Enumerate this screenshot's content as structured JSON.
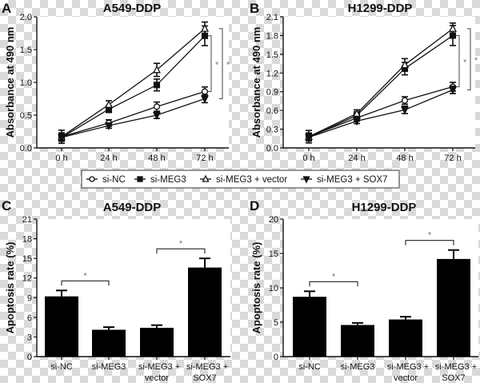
{
  "legend": {
    "items": [
      {
        "label": "si-NC",
        "marker": "open-circle"
      },
      {
        "label": "si-MEG3",
        "marker": "filled-square"
      },
      {
        "label": "si-MEG3 + vector",
        "marker": "open-triangle"
      },
      {
        "label": "si-MEG3 + SOX7",
        "marker": "filled-inverted-triangle"
      }
    ]
  },
  "panels": {
    "A": {
      "letter": "A",
      "title": "A549-DDP",
      "ylabel": "Absorbance at 490 nm"
    },
    "B": {
      "letter": "B",
      "title": "H1299-DDP",
      "ylabel": "Absorbance at 490 nm"
    },
    "C": {
      "letter": "C",
      "title": "A549-DDP",
      "ylabel": "Apoptosis rate (%)"
    },
    "D": {
      "letter": "D",
      "title": "H1299-DDP",
      "ylabel": "Apoptosis rate (%)"
    }
  },
  "significance_marker": "*",
  "chart_data": [
    {
      "type": "line",
      "panel": "A",
      "title": "A549-DDP",
      "xlabel": "",
      "ylabel": "Absorbance at 490 nm",
      "x": [
        "0 h",
        "24 h",
        "48 h",
        "72 h"
      ],
      "ylim": [
        0,
        2.0
      ],
      "yticks": [
        "0.0",
        "0.5",
        "1.0",
        "1.5",
        "2.0"
      ],
      "series": [
        {
          "name": "si-NC",
          "values": [
            0.17,
            0.38,
            0.63,
            0.86
          ],
          "errors": [
            0.1,
            0.05,
            0.07,
            0.07
          ]
        },
        {
          "name": "si-MEG3",
          "values": [
            0.16,
            0.59,
            0.96,
            1.71
          ],
          "errors": [
            0.06,
            0.05,
            0.09,
            0.15
          ]
        },
        {
          "name": "si-MEG3 + vector",
          "values": [
            0.17,
            0.66,
            1.19,
            1.82
          ],
          "errors": [
            0.06,
            0.06,
            0.1,
            0.1
          ]
        },
        {
          "name": "si-MEG3 + SOX7",
          "values": [
            0.16,
            0.34,
            0.5,
            0.75
          ],
          "errors": [
            0.05,
            0.04,
            0.05,
            0.06
          ]
        }
      ],
      "annotations": [
        {
          "text": "*",
          "between": [
            "si-MEG3",
            "si-NC"
          ],
          "at": "72 h"
        },
        {
          "text": "*",
          "between": [
            "si-MEG3 + vector",
            "si-MEG3 + SOX7"
          ],
          "at": "72 h"
        }
      ],
      "grid": false,
      "legend_position": "below"
    },
    {
      "type": "line",
      "panel": "B",
      "title": "H1299-DDP",
      "xlabel": "",
      "ylabel": "Absorbance at 490 nm",
      "x": [
        "0 h",
        "24 h",
        "48 h",
        "72 h"
      ],
      "ylim": [
        0,
        2.1
      ],
      "yticks": [
        "0.0",
        "0.3",
        "0.6",
        "0.9",
        "1.2",
        "1.5",
        "1.8",
        "2.1"
      ],
      "series": [
        {
          "name": "si-NC",
          "values": [
            0.18,
            0.48,
            0.76,
            0.98
          ],
          "errors": [
            0.1,
            0.05,
            0.06,
            0.07
          ]
        },
        {
          "name": "si-MEG3",
          "values": [
            0.17,
            0.52,
            1.27,
            1.8
          ],
          "errors": [
            0.06,
            0.06,
            0.1,
            0.16
          ]
        },
        {
          "name": "si-MEG3 + vector",
          "values": [
            0.18,
            0.55,
            1.33,
            1.91
          ],
          "errors": [
            0.06,
            0.06,
            0.1,
            0.09
          ]
        },
        {
          "name": "si-MEG3 + SOX7",
          "values": [
            0.17,
            0.43,
            0.61,
            0.93
          ],
          "errors": [
            0.05,
            0.04,
            0.06,
            0.06
          ]
        }
      ],
      "annotations": [
        {
          "text": "*",
          "between": [
            "si-MEG3",
            "si-NC"
          ],
          "at": "72 h"
        },
        {
          "text": "*",
          "between": [
            "si-MEG3 + vector",
            "si-MEG3 + SOX7"
          ],
          "at": "72 h"
        }
      ],
      "grid": false,
      "legend_position": "below"
    },
    {
      "type": "bar",
      "panel": "C",
      "title": "A549-DDP",
      "xlabel": "",
      "ylabel": "Apoptosis rate (%)",
      "categories": [
        "si-NC",
        "si-MEG3",
        "si-MEG3 + vector",
        "si-MEG3 + SOX7"
      ],
      "values": [
        9.2,
        4.1,
        4.4,
        13.6
      ],
      "errors": [
        0.9,
        0.4,
        0.4,
        1.4
      ],
      "ylim": [
        0,
        21
      ],
      "yticks": [
        "0",
        "3",
        "6",
        "9",
        "12",
        "15",
        "18",
        "21"
      ],
      "annotations": [
        {
          "text": "*",
          "between": [
            "si-NC",
            "si-MEG3"
          ]
        },
        {
          "text": "*",
          "between": [
            "si-MEG3 + vector",
            "si-MEG3 + SOX7"
          ]
        }
      ],
      "grid": false
    },
    {
      "type": "bar",
      "panel": "D",
      "title": "H1299-DDP",
      "xlabel": "",
      "ylabel": "Apoptosis rate (%)",
      "categories": [
        "si-NC",
        "si-MEG3",
        "si-MEG3 + vector",
        "si-MEG3 + SOX7"
      ],
      "values": [
        8.7,
        4.6,
        5.4,
        14.2
      ],
      "errors": [
        0.8,
        0.3,
        0.4,
        1.3
      ],
      "ylim": [
        0,
        20
      ],
      "yticks": [
        "0",
        "5",
        "10",
        "15",
        "20"
      ],
      "annotations": [
        {
          "text": "*",
          "between": [
            "si-NC",
            "si-MEG3"
          ]
        },
        {
          "text": "*",
          "between": [
            "si-MEG3 + vector",
            "si-MEG3 + SOX7"
          ]
        }
      ],
      "grid": false
    }
  ]
}
